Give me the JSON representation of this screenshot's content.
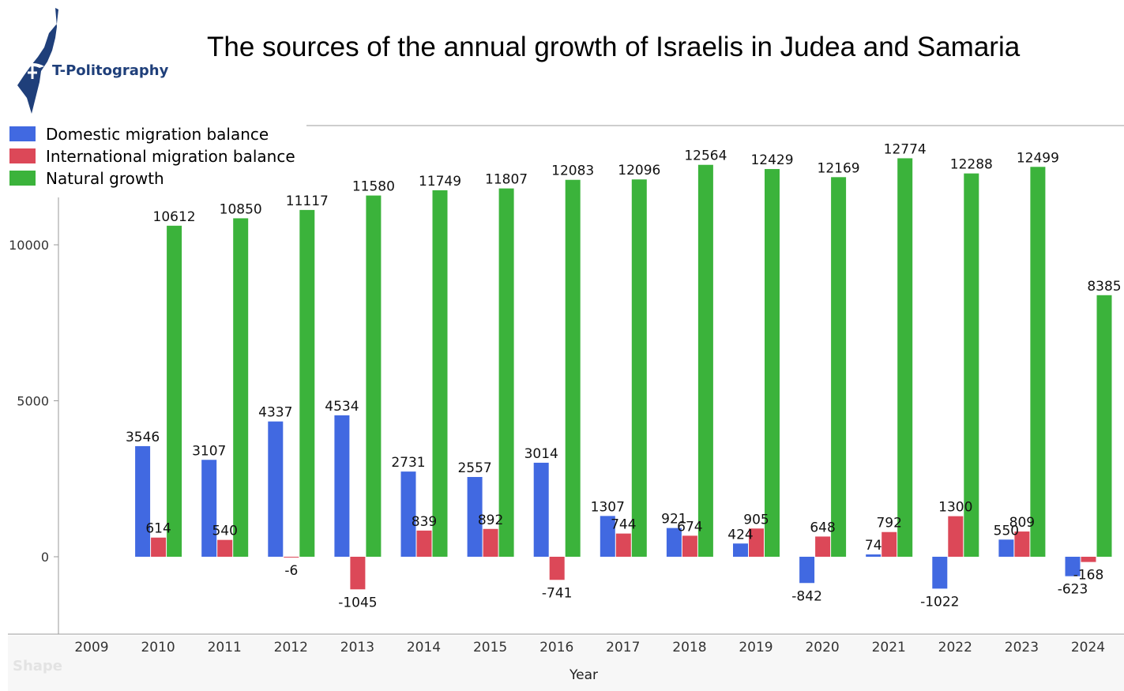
{
  "title": "The sources of the annual growth of Israelis in Judea and Samaria",
  "logo": {
    "text": "T-Politography",
    "color": "#1f3f7a"
  },
  "watermark": "Shape",
  "chart_data": {
    "type": "bar",
    "title": "The sources of the annual growth of Israelis in Judea and Samaria",
    "xlabel": "Year",
    "ylabel": "",
    "categories": [
      "2009",
      "2010",
      "2011",
      "2012",
      "2013",
      "2014",
      "2015",
      "2016",
      "2017",
      "2018",
      "2019",
      "2020",
      "2021",
      "2022",
      "2023",
      "2024"
    ],
    "yticks": [
      0,
      5000,
      10000
    ],
    "ytick_labels": [
      "0",
      "5000",
      "10000"
    ],
    "ylim": [
      -2500,
      13500
    ],
    "grid": false,
    "legend_position": "top-left",
    "series": [
      {
        "name": "Domestic migration balance",
        "color": "#4169e1",
        "values": [
          null,
          3546,
          3107,
          4337,
          4534,
          2731,
          2557,
          3014,
          1307,
          921,
          424,
          -842,
          74,
          -1022,
          550,
          -623
        ]
      },
      {
        "name": "International migration balance",
        "color": "#dc4858",
        "values": [
          null,
          614,
          540,
          -6,
          -1045,
          839,
          892,
          -741,
          744,
          674,
          905,
          648,
          792,
          1300,
          809,
          -168
        ]
      },
      {
        "name": "Natural growth",
        "color": "#3bb33b",
        "values": [
          null,
          10612,
          10850,
          11117,
          11580,
          11749,
          11807,
          12083,
          12096,
          12564,
          12429,
          12169,
          12774,
          12288,
          12499,
          8385
        ]
      }
    ]
  }
}
